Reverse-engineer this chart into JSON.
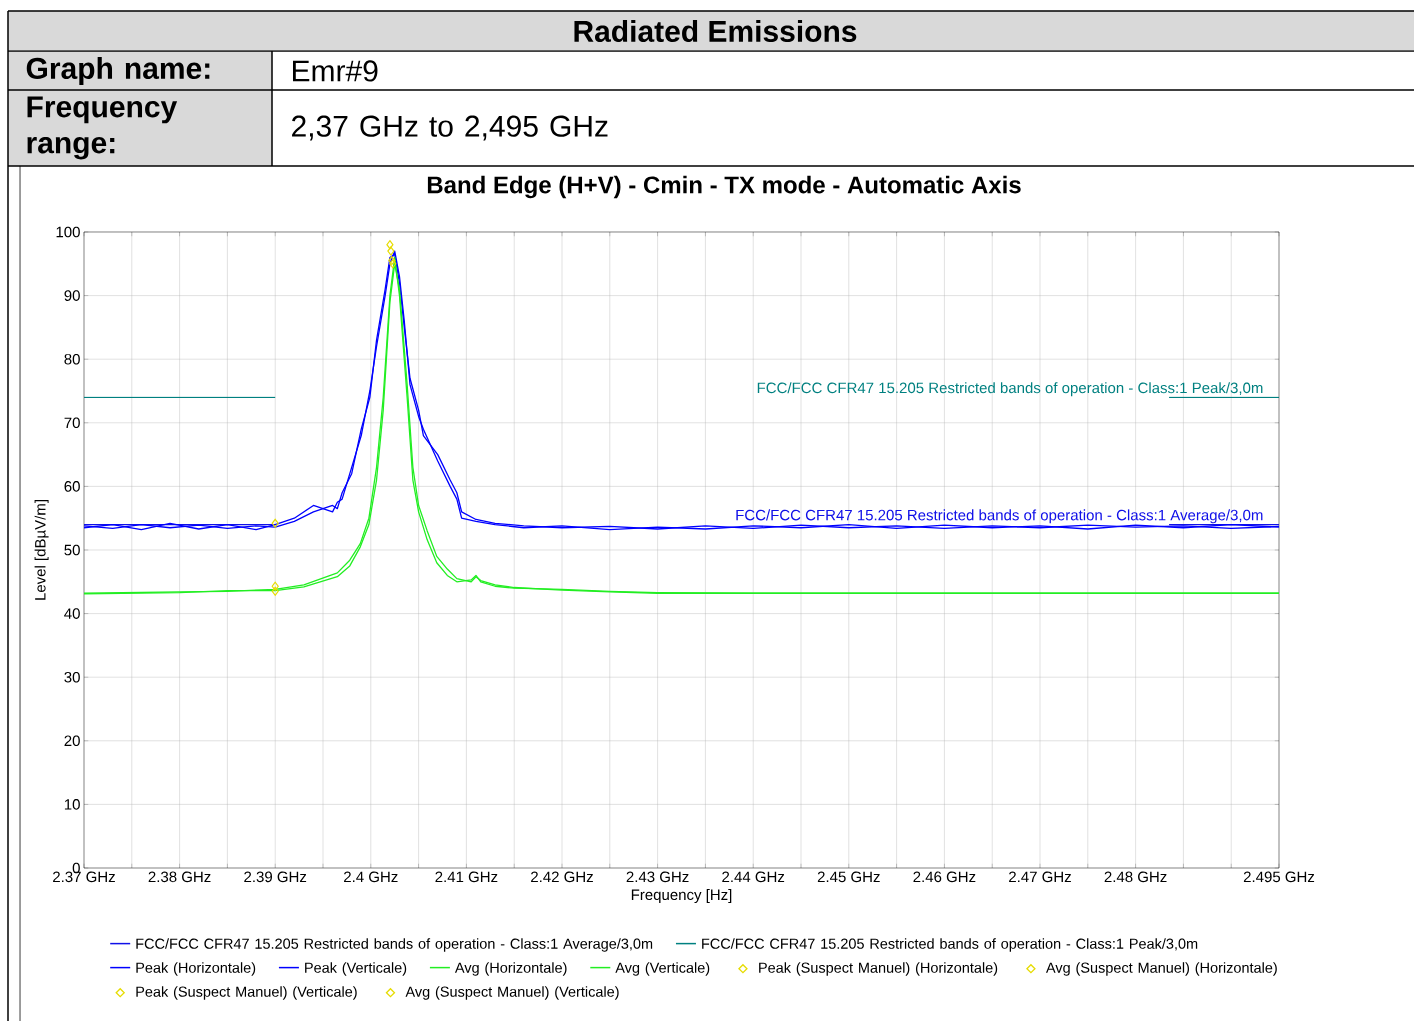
{
  "chart_data": {
    "type": "line",
    "title": "Radiated Emissions",
    "subtitle": "Band Edge (H+V) - Cmin - TX mode - Automatic Axis",
    "xlabel": "Frequency [Hz]",
    "ylabel": "Level [dBµV/m]",
    "annotations": [
      "Graph name:",
      "Emr#9",
      "Frequency range:",
      "2,37 GHz to 2,495 GHz",
      {
        "text": "FCC/FCC CFR47 15.205 Restricted bands of operation - Class:1 Peak/3,0m",
        "x": 2.4935,
        "y": 74
      },
      {
        "text": "FCC/FCC CFR47 15.205 Restricted bands of operation - Class:1 Average/3,0m",
        "x": 2.4935,
        "y": 54
      }
    ],
    "xlim": [
      2.37,
      2.495
    ],
    "ylim": [
      0,
      100
    ],
    "xticks": [
      {
        "value": 2.37,
        "label": "2.37 GHz"
      },
      {
        "value": 2.375,
        "label": null
      },
      {
        "value": 2.38,
        "label": "2.38 GHz"
      },
      {
        "value": 2.385,
        "label": null
      },
      {
        "value": 2.39,
        "label": "2.39 GHz"
      },
      {
        "value": 2.395,
        "label": null
      },
      {
        "value": 2.4,
        "label": "2.4 GHz"
      },
      {
        "value": 2.405,
        "label": null
      },
      {
        "value": 2.41,
        "label": "2.41 GHz"
      },
      {
        "value": 2.415,
        "label": null
      },
      {
        "value": 2.42,
        "label": "2.42 GHz"
      },
      {
        "value": 2.425,
        "label": null
      },
      {
        "value": 2.43,
        "label": "2.43 GHz"
      },
      {
        "value": 2.435,
        "label": null
      },
      {
        "value": 2.44,
        "label": "2.44 GHz"
      },
      {
        "value": 2.445,
        "label": null
      },
      {
        "value": 2.45,
        "label": "2.45 GHz"
      },
      {
        "value": 2.455,
        "label": null
      },
      {
        "value": 2.46,
        "label": "2.46 GHz"
      },
      {
        "value": 2.465,
        "label": null
      },
      {
        "value": 2.47,
        "label": "2.47 GHz"
      },
      {
        "value": 2.475,
        "label": null
      },
      {
        "value": 2.48,
        "label": "2.48 GHz"
      },
      {
        "value": 2.485,
        "label": null
      },
      {
        "value": 2.49,
        "label": null
      },
      {
        "value": 2.495,
        "label": "2.495 GHz"
      }
    ],
    "yticks": [
      0,
      10,
      20,
      30,
      40,
      50,
      60,
      70,
      80,
      90,
      100
    ],
    "grid": true,
    "legend": "bottom",
    "series": [
      {
        "name": "FCC/FCC CFR47 15.205 Restricted bands of operation - Class:1 Average/3,0m",
        "color": "#1010e8",
        "x": [
          2.37,
          2.39,
          2.4,
          2.4835,
          2.495
        ],
        "values": [
          54,
          54,
          null,
          54,
          54
        ]
      },
      {
        "name": "FCC/FCC CFR47 15.205 Restricted bands of operation - Class:1 Peak/3,0m",
        "color": "#008080",
        "x": [
          2.37,
          2.39,
          2.4,
          2.4835,
          2.495
        ],
        "values": [
          74,
          74,
          null,
          74,
          74
        ]
      },
      {
        "name": "Peak (Horizontale)",
        "color": "#0000ff",
        "x": [
          2.37,
          2.373,
          2.376,
          2.379,
          2.382,
          2.385,
          2.388,
          2.39,
          2.392,
          2.394,
          2.396,
          2.3965,
          2.397,
          2.398,
          2.399,
          2.3999,
          2.4006,
          2.4015,
          2.402,
          2.4025,
          2.403,
          2.4035,
          2.4041,
          2.405,
          2.4055,
          2.407,
          2.4083,
          2.409,
          2.4095,
          2.411,
          2.413,
          2.416,
          2.42,
          2.425,
          2.43,
          2.435,
          2.44,
          2.445,
          2.45,
          2.455,
          2.46,
          2.465,
          2.47,
          2.475,
          2.48,
          2.485,
          2.49,
          2.495
        ],
        "values": [
          53.5,
          54,
          53.2,
          54.2,
          53.3,
          54,
          53.2,
          54,
          55,
          57,
          56,
          57.5,
          58,
          63,
          68,
          75,
          82,
          90,
          95,
          97,
          93,
          86,
          76,
          71,
          69,
          64,
          60,
          58,
          55,
          54.5,
          54,
          53.5,
          53.8,
          53.2,
          53.6,
          53.3,
          53.8,
          53.5,
          54,
          53.4,
          53.9,
          53.5,
          53.8,
          53.3,
          53.9,
          53.5,
          54,
          53.6
        ]
      },
      {
        "name": "Peak (Verticale)",
        "color": "#0000ff",
        "x": [
          2.37,
          2.373,
          2.376,
          2.379,
          2.382,
          2.385,
          2.388,
          2.39,
          2.392,
          2.394,
          2.396,
          2.3965,
          2.397,
          2.398,
          2.399,
          2.3999,
          2.4006,
          2.4015,
          2.402,
          2.4025,
          2.403,
          2.4035,
          2.4041,
          2.405,
          2.4055,
          2.407,
          2.4083,
          2.409,
          2.4095,
          2.411,
          2.413,
          2.416,
          2.42,
          2.425,
          2.43,
          2.435,
          2.44,
          2.445,
          2.45,
          2.455,
          2.46,
          2.465,
          2.47,
          2.475,
          2.48,
          2.485,
          2.49,
          2.495
        ],
        "values": [
          53.8,
          53.4,
          54,
          53.5,
          53.9,
          53.4,
          53.8,
          53.6,
          54.5,
          56,
          57,
          56.5,
          59,
          62,
          69,
          74,
          83,
          91,
          96,
          96.5,
          92,
          85,
          77,
          72,
          68,
          65,
          61,
          59,
          56,
          54.8,
          54.2,
          53.8,
          53.5,
          53.7,
          53.3,
          53.8,
          53.4,
          53.9,
          53.5,
          53.8,
          53.4,
          53.8,
          53.5,
          53.9,
          53.6,
          53.8,
          53.4,
          53.7
        ]
      },
      {
        "name": "Avg (Horizontale)",
        "color": "#22ee22",
        "x": [
          2.37,
          2.38,
          2.385,
          2.39,
          2.393,
          2.3965,
          2.3978,
          2.3989,
          2.3998,
          2.4006,
          2.4013,
          2.402,
          2.4025,
          2.403,
          2.4038,
          2.4044,
          2.405,
          2.4059,
          2.4069,
          2.408,
          2.409,
          2.4105,
          2.411,
          2.4115,
          2.413,
          2.415,
          2.42,
          2.425,
          2.43,
          2.44,
          2.45,
          2.46,
          2.47,
          2.48,
          2.49,
          2.495
        ],
        "values": [
          43.2,
          43.4,
          43.5,
          43.8,
          44.5,
          46.4,
          48.4,
          51,
          55,
          63,
          74,
          90,
          96,
          90,
          74,
          61,
          56,
          51.6,
          48,
          46,
          45,
          45.3,
          46,
          45,
          44.3,
          44,
          43.8,
          43.5,
          43.3,
          43.2,
          43.2,
          43.2,
          43.2,
          43.2,
          43.2,
          43.2
        ]
      },
      {
        "name": "Avg (Verticale)",
        "color": "#22ee22",
        "x": [
          2.37,
          2.38,
          2.385,
          2.39,
          2.393,
          2.3965,
          2.3978,
          2.3989,
          2.3998,
          2.4006,
          2.4013,
          2.402,
          2.4025,
          2.403,
          2.4038,
          2.4044,
          2.405,
          2.4059,
          2.4069,
          2.408,
          2.409,
          2.4105,
          2.411,
          2.4115,
          2.413,
          2.415,
          2.42,
          2.425,
          2.43,
          2.44,
          2.45,
          2.46,
          2.47,
          2.48,
          2.49,
          2.495
        ],
        "values": [
          43.1,
          43.3,
          43.6,
          43.6,
          44.2,
          45.8,
          47.5,
          50.5,
          54,
          61,
          72,
          89,
          95,
          91,
          76,
          63,
          57,
          53,
          49,
          47,
          45.5,
          45,
          45.8,
          45.2,
          44.5,
          44.1,
          43.7,
          43.4,
          43.2,
          43.2,
          43.2,
          43.2,
          43.2,
          43.2,
          43.2,
          43.2
        ]
      },
      {
        "name": "Peak (Suspect Manuel) (Horizontale)",
        "type": "scatter",
        "marker": "diamond",
        "color": "#e6dc00",
        "x": [
          2.39,
          2.402
        ],
        "values": [
          54.2,
          98
        ]
      },
      {
        "name": "Avg (Suspect Manuel) (Horizontale)",
        "type": "scatter",
        "marker": "diamond",
        "color": "#e6dc00",
        "x": [
          2.39,
          2.4022
        ],
        "values": [
          44.3,
          95.5
        ]
      },
      {
        "name": "Peak (Suspect Manuel) (Verticale)",
        "type": "scatter",
        "marker": "diamond",
        "color": "#e6dc00",
        "x": [
          2.4021
        ],
        "values": [
          97
        ]
      },
      {
        "name": "Avg (Suspect Manuel) (Verticale)",
        "type": "scatter",
        "marker": "diamond",
        "color": "#e6dc00",
        "x": [
          2.39,
          2.4023
        ],
        "values": [
          43.5,
          95
        ]
      }
    ]
  }
}
